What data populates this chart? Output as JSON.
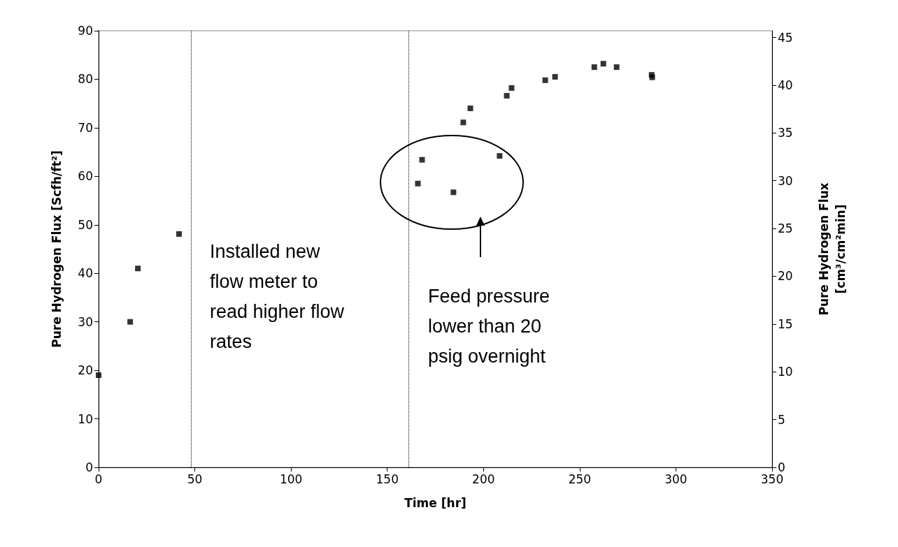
{
  "chart_data": {
    "type": "scatter",
    "xlabel": "Time [hr]",
    "ylabel": "Pure Hydrogen Flux [Scfh/ft²]",
    "y2label": "Pure Hydrogen Flux [cm³/cm²min]",
    "x": [
      0,
      16.4,
      20.4,
      41.8,
      165.9,
      168.1,
      184.4,
      208.4,
      189.5,
      193.2,
      212.1,
      214.6,
      232.1,
      237.2,
      257.6,
      262.3,
      269.2,
      287.4,
      287.7
    ],
    "series": [
      {
        "color": "#000000",
        "values": [
          19.0,
          30.0,
          41.0,
          48.1,
          58.5,
          63.4,
          56.7,
          64.2,
          71.1,
          74.0,
          76.6,
          78.2,
          79.8,
          80.5,
          82.5,
          83.2,
          82.5,
          80.9,
          80.4
        ]
      }
    ],
    "xlim": [
      0,
      350
    ],
    "xticks": [
      0,
      50,
      100,
      150,
      200,
      250,
      300,
      350
    ],
    "ylim": [
      0,
      90
    ],
    "yticks": [
      0,
      10,
      20,
      30,
      40,
      50,
      60,
      70,
      80,
      90
    ],
    "y2lim": [
      0,
      45.7
    ],
    "y2ticks": [
      0,
      5,
      10,
      15,
      20,
      25,
      30,
      35,
      40,
      45
    ],
    "ref_lines": [
      {
        "axis": "x",
        "value": 48,
        "line_style": "dotted",
        "color": "#000000"
      },
      {
        "axis": "x",
        "value": 161,
        "line_style": "dotted",
        "color": "#000000"
      }
    ],
    "annotations": [
      "Installed new flow meter to read higher flow rates",
      "Feed pressure lower than 20 psig overnight"
    ],
    "marker": "square"
  }
}
